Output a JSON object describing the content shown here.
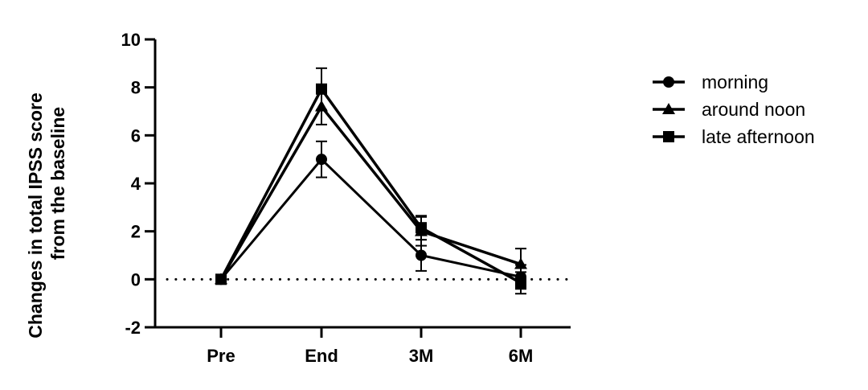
{
  "chart_data": {
    "type": "line",
    "title": "",
    "xlabel": "",
    "ylabel": [
      "Changes in total IPSS score",
      "from the baseline"
    ],
    "categories": [
      "Pre",
      "End",
      "3M",
      "6M"
    ],
    "ylim": [
      -2,
      10
    ],
    "yticks": [
      "10",
      "8",
      "6",
      "4",
      "2",
      "0",
      "-2"
    ],
    "ytick_values": [
      10,
      8,
      6,
      4,
      2,
      0,
      -2
    ],
    "reference_line": 0,
    "legend_position": "top-right",
    "series": [
      {
        "name": "morning",
        "marker": "circle",
        "values": [
          0,
          5.0,
          1.0,
          0.1
        ],
        "error": [
          0,
          0.75,
          0.65,
          0.5
        ]
      },
      {
        "name": "around noon",
        "marker": "triangle",
        "values": [
          0,
          7.2,
          2.0,
          0.63
        ],
        "error": [
          0,
          0.75,
          0.6,
          0.65
        ]
      },
      {
        "name": "late afternoon",
        "marker": "square",
        "values": [
          0,
          7.93,
          2.15,
          -0.15
        ],
        "error": [
          0,
          0.87,
          0.5,
          0.45
        ]
      }
    ]
  }
}
